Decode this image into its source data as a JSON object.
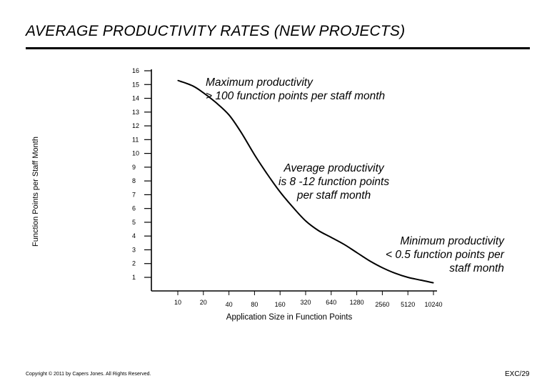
{
  "title": "AVERAGE PRODUCTIVITY RATES (NEW PROJECTS)",
  "footer": {
    "copyright": "Copyright © 2011 by Capers Jones. All Rights Reserved.",
    "slide_number": "EXC/29"
  },
  "annotations": {
    "maximum": [
      "Maximum productivity",
      "> 100 function points per staff month"
    ],
    "average": [
      "Average productivity",
      "is 8 -12 function points",
      "per staff month"
    ],
    "minimum": [
      "Minimum productivity",
      "< 0.5 function points per",
      "staff month"
    ]
  },
  "chart_data": {
    "type": "line",
    "title": "AVERAGE PRODUCTIVITY RATES (NEW PROJECTS)",
    "xlabel": "Application Size in Function Points",
    "ylabel": "Function Points per Staff Month",
    "x_scale": "log2",
    "categories": [
      "10",
      "20",
      "40",
      "80",
      "160",
      "320",
      "640",
      "1280",
      "2560",
      "5120",
      "10240"
    ],
    "y_ticks": [
      1,
      2,
      3,
      4,
      5,
      6,
      7,
      8,
      9,
      10,
      11,
      12,
      13,
      14,
      15,
      16
    ],
    "ylim": [
      0,
      16
    ],
    "series": [
      {
        "name": "Productivity",
        "x": [
          10,
          15,
          20,
          28,
          40,
          56,
          80,
          113,
          160,
          226,
          320,
          452,
          640,
          905,
          1280,
          1810,
          2560,
          3620,
          5120,
          7240,
          10240
        ],
        "y": [
          15.3,
          14.9,
          14.4,
          13.7,
          12.8,
          11.5,
          9.9,
          8.5,
          7.2,
          6.1,
          5.1,
          4.4,
          3.9,
          3.4,
          2.8,
          2.2,
          1.7,
          1.3,
          1.0,
          0.8,
          0.6
        ]
      }
    ]
  }
}
